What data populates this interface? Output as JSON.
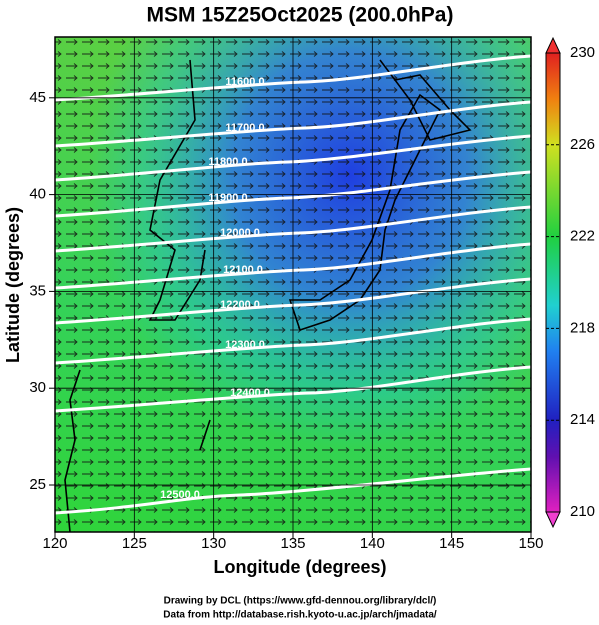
{
  "title": "MSM 15Z25Oct2025 (200.0hPa)",
  "x_axis": {
    "label": "Longitude (degrees)",
    "ticks": [
      120,
      125,
      130,
      135,
      140,
      145,
      150
    ]
  },
  "y_axis": {
    "label": "Latitude  (degrees)",
    "ticks": [
      25,
      30,
      35,
      40,
      45
    ]
  },
  "colorbar": {
    "ticks": [
      210,
      214,
      218,
      222,
      226,
      230
    ]
  },
  "contour_labels": [
    "11600.0",
    "11700.0",
    "11800.0",
    "11900.0",
    "12000.0",
    "12100.0",
    "12200.0",
    "12300.0",
    "12400.0",
    "12500.0"
  ],
  "footer": [
    "Drawing by DCL (https://www.gfd-dennou.org/library/dcl/)",
    "Data from http://database.rish.kyoto-u.ac.jp/arch/jmadata/"
  ]
}
